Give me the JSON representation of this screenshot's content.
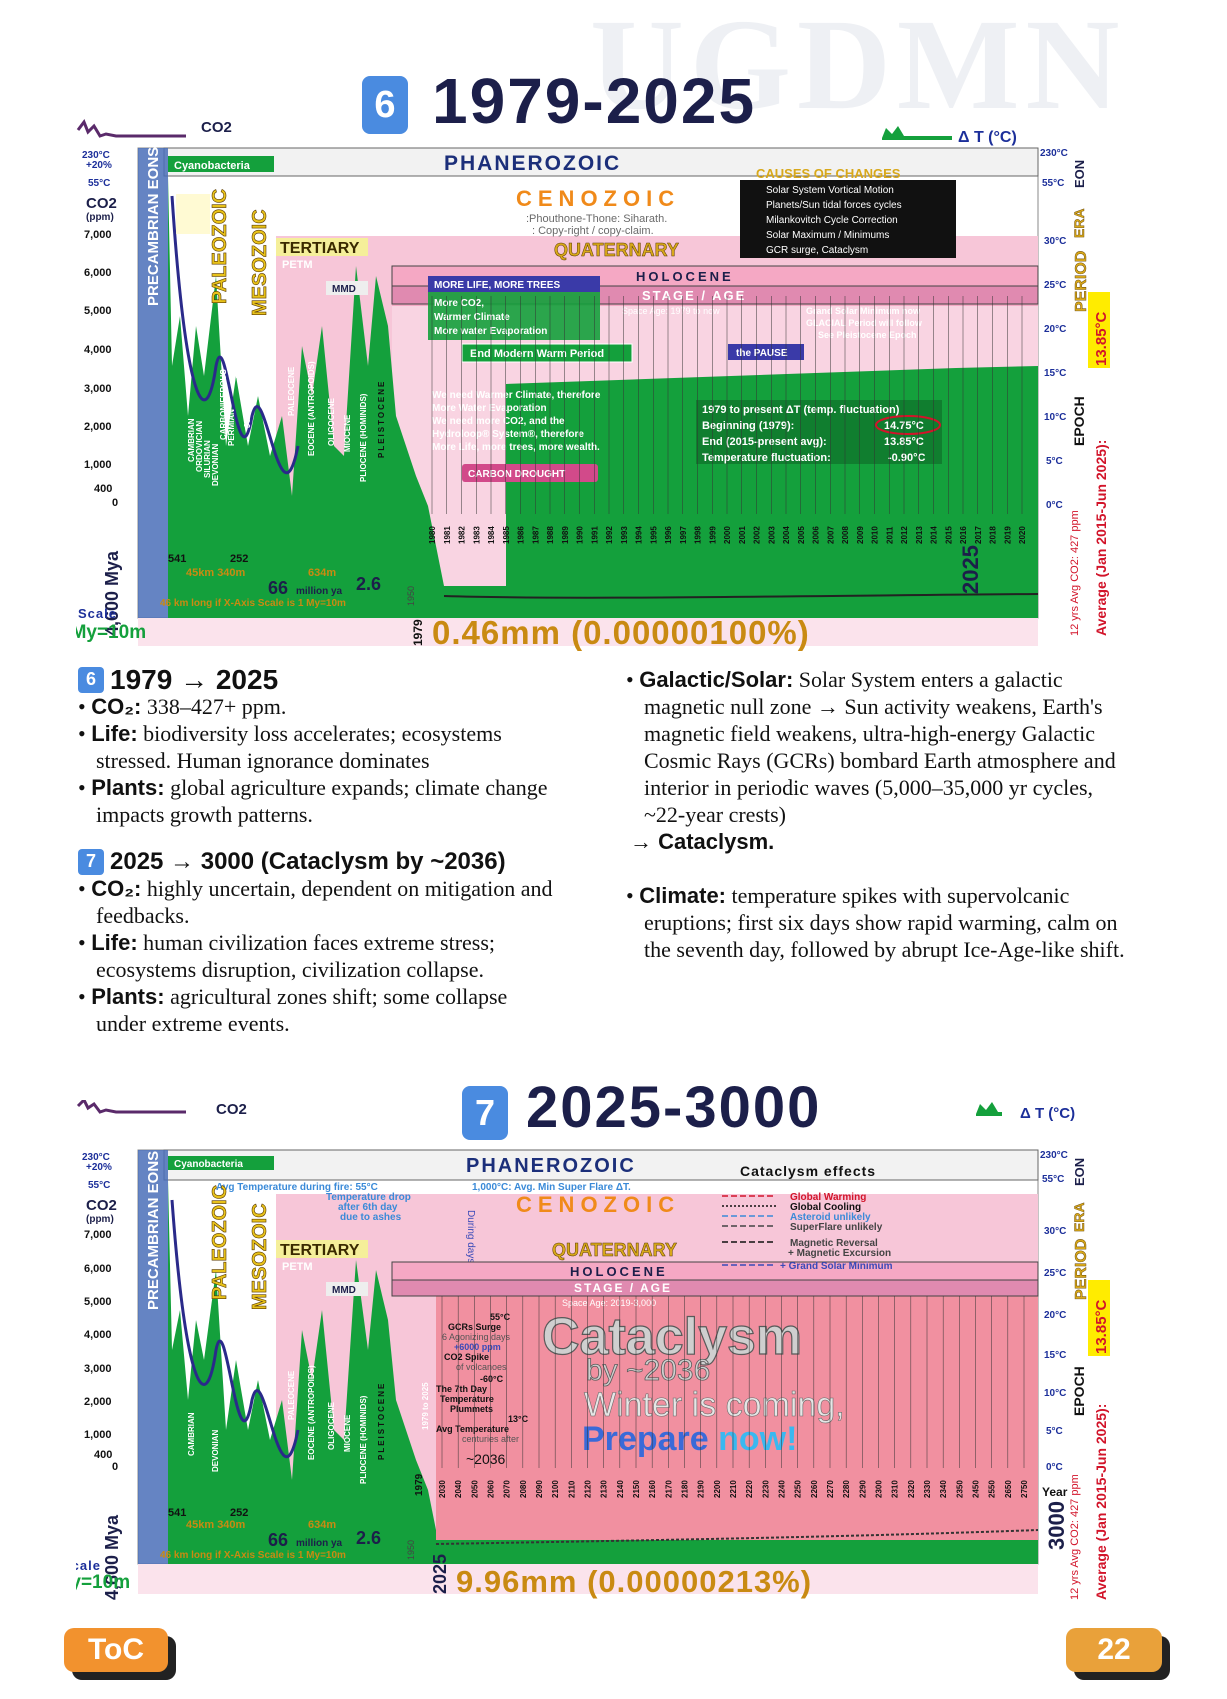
{
  "watermark": "UGDMN",
  "section6": {
    "badge": "6",
    "title": "1979-2025",
    "chart": {
      "co2_label": "CO2",
      "dt_label": "Δ T (°C)",
      "phanerozoic": "PHANEROZOIC",
      "precambrian": "PRECAMBRIAN EONS",
      "cyanobacteria": "Cyanobacteria",
      "paleozoic": "PALEOZOIC",
      "mesozoic": "MESOZOIC",
      "cenozoic": "CENOZOIC",
      "credit": ":Phouthone-Thone: Siharath.",
      "copyright": ": Copy-right / copy-claim.",
      "tertiary": "TERTIARY",
      "petm": "PETM",
      "ce": "CE",
      "mmd": "MMD",
      "quaternary": "QUATERNARY",
      "holocene": "HOLOCENE",
      "stage_age": "STAGE / AGE",
      "space_age": "Space Age: 1979 to now",
      "causes_title": "CAUSES OF CHANGES",
      "causes": [
        "Solar System Vortical Motion",
        "Planets/Sun tidal forces cycles",
        "Milankovitch Cycle Correction",
        "Solar Maximum / Minimums",
        "GCR surge, Cataclysm"
      ],
      "more_life": "MORE LIFE, MORE TREES",
      "more_lines": [
        "More CO2,",
        "Warmer Climate",
        "More water Evaporation"
      ],
      "end_modern": "End Modern Warm Period",
      "the_pause": "the PAUSE",
      "grand_solar": [
        "Grand Solar Minimum now",
        "GLACIAL Period will follow",
        "See Pleistocene Epoch"
      ],
      "we_need": [
        "We need Warmer Climate, therefore",
        "More Water Evaporation",
        "We need more CO2, and the",
        "Hydroloop® System®, therefore",
        "More Life, more trees, more wealth."
      ],
      "carbon_drought": "CARBON DROUGHT",
      "fluct_title": "1979 to present ΔT (temp. fluctuation)",
      "fluct_rows": [
        {
          "label": "Beginning (1979):",
          "value": "14.75°C"
        },
        {
          "label": "End (2015-present avg):",
          "value": "13.85°C"
        },
        {
          "label": "Temperature fluctuation:",
          "value": "-0.90°C"
        }
      ],
      "y_left": [
        "7,000",
        "6,000",
        "5,000",
        "4,000",
        "3,000",
        "2,000",
        "1,000",
        "400",
        "0"
      ],
      "y_left_top": [
        "230°C",
        "+20%",
        "55°C"
      ],
      "ppm": "(ppm)",
      "y_right": [
        "230°C",
        "55°C",
        "30°C",
        "25°C",
        "20°C",
        "15°C",
        "10°C",
        "5°C",
        "0°C"
      ],
      "right_labels": [
        "EON",
        "ERA",
        "PERIOD",
        "EPOCH"
      ],
      "avg_temp": "13.85°C",
      "avg_caption": "Average (Jan 2015-Jun 2025):",
      "co2_caption": "12 yrs Avg CO2: 427 ppm",
      "periods": [
        "CAMBRIAN",
        "ORDOVICIAN",
        "SILURIAN",
        "DEVONIAN",
        "CARBONIFEROUS",
        "PERMIAN",
        "TRIASSIC",
        "JURASSIC",
        "CRETACEOUS",
        "PALEOCENE",
        "EOCENE (ANTROPOIDS)",
        "OLIGOCENE",
        "MIOCENE",
        "PLIOCENE (HOMINIDS)",
        "PLEISTOCENE"
      ],
      "years": [
        "1980",
        "1981",
        "1982",
        "1983",
        "1984",
        "1985",
        "1986",
        "1987",
        "1988",
        "1989",
        "1990",
        "1991",
        "1992",
        "1993",
        "1994",
        "1995",
        "1996",
        "1997",
        "1998",
        "1999",
        "2000",
        "2001",
        "2002",
        "2003",
        "2004",
        "2005",
        "2006",
        "2007",
        "2008",
        "2009",
        "2010",
        "2011",
        "2012",
        "2013",
        "2014",
        "2015",
        "2016",
        "2017",
        "2018",
        "2019",
        "2020"
      ],
      "mya": "4,600 Mya",
      "x_marks": [
        "541",
        "252",
        "66",
        "2.6"
      ],
      "km_line": "45km 340m",
      "m634": "634m",
      "million_ya": "million ya",
      "x46": "46 km long if X-Axis Scale is 1 My=10m",
      "scale": "Scale",
      "scale_val": "1My=10m",
      "y1979": "1979",
      "y1950": "1950",
      "end_year": "2025",
      "mm": "0.46mm (0.00000100%)"
    }
  },
  "text": {
    "h6_badge": "6",
    "h6": "1979 → 2025",
    "b6": [
      {
        "k": "CO₂:",
        "v": " 338–427+ ppm."
      },
      {
        "k": "Life:",
        "v": " biodiversity loss accelerates; ecosystems stressed. Human ignorance dominates"
      },
      {
        "k": "Plants:",
        "v": " global agriculture expands; climate change impacts growth patterns."
      }
    ],
    "h7_badge": "7",
    "h7": "2025 → 3000 (Cataclysm by ~2036)",
    "b7": [
      {
        "k": "CO₂:",
        "v": " highly uncertain, dependent on mitigation and feedbacks."
      },
      {
        "k": "Life:",
        "v": " human civilization faces extreme stress; ecosystems disruption, civilization collapse."
      },
      {
        "k": "Plants:",
        "v": " agricultural zones shift; some collapse under extreme events."
      }
    ],
    "galactic_k": "Galactic/Solar:",
    "galactic_v": " Solar System enters a galactic magnetic null zone → Sun activity weakens, Earth's magnetic field weakens, ultra-high-energy Galactic Cosmic Rays (GCRs) bombard Earth atmosphere and interior in periodic waves (5,000–35,000 yr cycles, ~22-year crests)",
    "cataclysm": "→ Cataclysm.",
    "climate_k": "Climate:",
    "climate_v": " temperature spikes with supervolcanic eruptions; first six days show rapid warming, calm on the seventh day, followed by abrupt Ice-Age-like shift."
  },
  "section7": {
    "badge": "7",
    "title": "2025-3000",
    "chart": {
      "avg_fire": "Avg Temperature during fire: 55°C",
      "super_flare": "1,000°C: Avg. Min Super Flare ΔT.",
      "effects_title": "Cataclysm effects",
      "effects": [
        "Global Warming",
        "Global Cooling",
        "Asteroid unlikely",
        "SuperFlare unlikely",
        "Magnetic Reversal",
        "+ Magnetic Excursion",
        "+ Grand Solar Minimum"
      ],
      "temp_drop": [
        "Temperature drop",
        "after 6th day",
        "due to ashes"
      ],
      "during_days": "During days",
      "space_age": "Space Age: 2019-3,000",
      "gcr": [
        "55°C",
        "GCRs Surge",
        "6 Agonizing days",
        "+6000 ppm",
        "CO2 Spike",
        "of volcanoes",
        "-60°C",
        "The 7th Day",
        "Temperature",
        "Plummets",
        "13°C",
        "Avg Temperature",
        "centuries after"
      ],
      "cataclysm_big": "Cataclysm",
      "by2036": "by ~2036",
      "winter": "Winter is coming,",
      "prepare": "Prepare ",
      "now": "now!",
      "tilde2036": "~2036",
      "range1979": "1979 to 2025",
      "year_word": "Year",
      "years": [
        "2030",
        "2040",
        "2050",
        "2060",
        "2070",
        "2080",
        "2090",
        "2100",
        "2110",
        "2120",
        "2130",
        "2140",
        "2150",
        "2160",
        "2170",
        "2180",
        "2190",
        "2200",
        "2210",
        "2220",
        "2230",
        "2240",
        "2250",
        "2260",
        "2270",
        "2280",
        "2290",
        "2300",
        "2310",
        "2320",
        "2330",
        "2340",
        "2350",
        "2450",
        "2550",
        "2650",
        "2750"
      ],
      "start_year": "2025",
      "end_year": "3000",
      "mm": "9.96mm (0.00000213%)"
    }
  },
  "footer": {
    "toc": "ToC",
    "page": "22"
  },
  "colors": {
    "navy": "#1c1f4a",
    "green": "#14a03c",
    "pink": "#f7c6d8",
    "blue": "#4a8be0",
    "orange": "#f2922e",
    "red": "#d2142a",
    "gold": "#c98a12"
  }
}
